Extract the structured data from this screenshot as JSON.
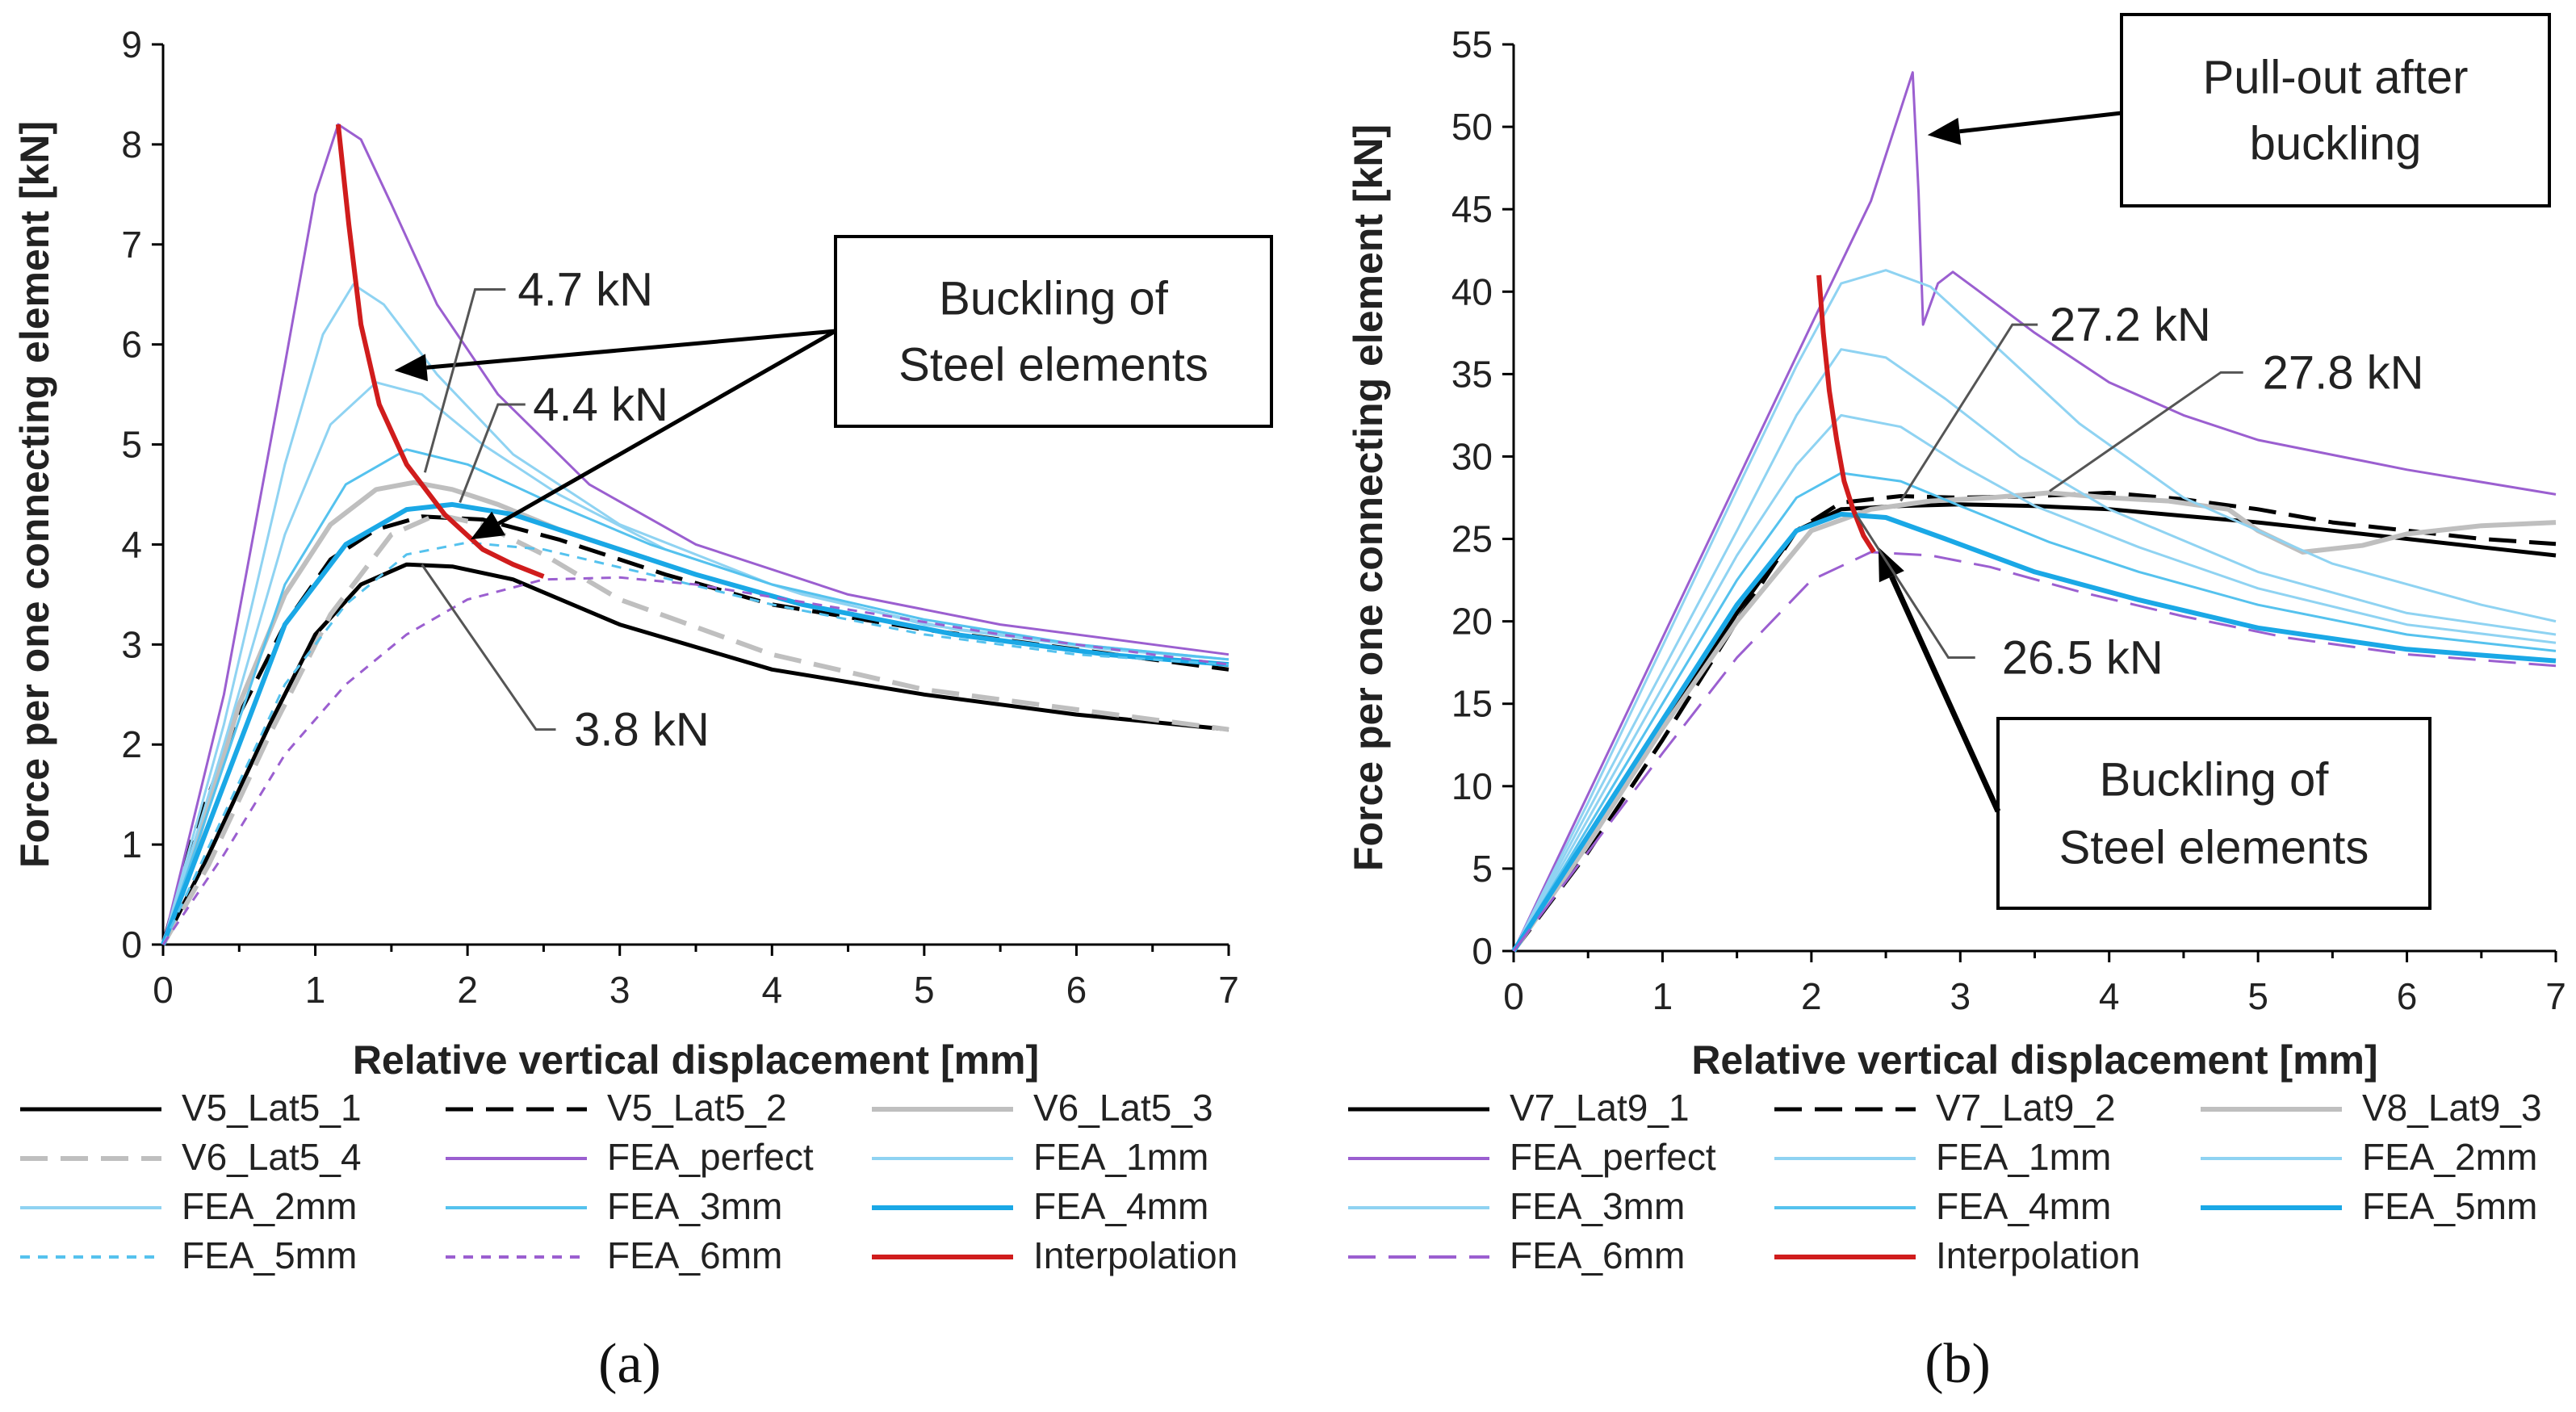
{
  "colors": {
    "black": "#000000",
    "gray": "#bfbfbf",
    "purple": "#9b5fd0",
    "light_blue": "#8fd3f2",
    "mid_blue": "#55c2ee",
    "strong_blue": "#1aa8e6",
    "red": "#d01c1c"
  },
  "chart_data": [
    {
      "type": "line",
      "panel_label": "(a)",
      "xlabel": "Relative vertical displacement [mm]",
      "ylabel": "Force per one connecting element [kN]",
      "xlim": [
        0,
        7
      ],
      "ylim": [
        0,
        9
      ],
      "xticks": [
        "0",
        "1",
        "2",
        "3",
        "4",
        "5",
        "6",
        "7"
      ],
      "yticks": [
        "0",
        "1",
        "2",
        "3",
        "4",
        "5",
        "6",
        "7",
        "8",
        "9"
      ],
      "series": [
        {
          "name": "V5_Lat5_1",
          "color": "#000000",
          "dash": "solid",
          "width": 5,
          "x": [
            0,
            0.3,
            0.7,
            1.0,
            1.3,
            1.6,
            1.9,
            2.3,
            3,
            4,
            5,
            6,
            7
          ],
          "y": [
            0,
            0.9,
            2.2,
            3.1,
            3.6,
            3.8,
            3.78,
            3.65,
            3.2,
            2.75,
            2.5,
            2.3,
            2.15
          ]
        },
        {
          "name": "V5_Lat5_2",
          "color": "#000000",
          "dash": "long",
          "width": 5,
          "x": [
            0,
            0.2,
            0.5,
            0.8,
            1.1,
            1.4,
            1.7,
            2.1,
            2.6,
            3.3,
            4,
            5,
            6,
            7
          ],
          "y": [
            0,
            1.1,
            2.3,
            3.2,
            3.85,
            4.15,
            4.28,
            4.25,
            4.05,
            3.7,
            3.4,
            3.15,
            2.95,
            2.75
          ]
        },
        {
          "name": "V6_Lat5_3",
          "color": "#bfbfbf",
          "dash": "solid",
          "width": 6,
          "x": [
            0,
            0.2,
            0.5,
            0.8,
            1.1,
            1.4,
            1.65,
            1.9,
            2.2,
            2.6,
            3.2
          ],
          "y": [
            0,
            0.9,
            2.4,
            3.5,
            4.2,
            4.55,
            4.62,
            4.55,
            4.4,
            4.15,
            3.85
          ]
        },
        {
          "name": "V6_Lat5_4",
          "color": "#bfbfbf",
          "dash": "long",
          "width": 6,
          "x": [
            0,
            0.3,
            0.7,
            1.1,
            1.5,
            1.8,
            2.1,
            2.5,
            3,
            4,
            5,
            6,
            7
          ],
          "y": [
            0,
            0.8,
            2.1,
            3.3,
            4.1,
            4.3,
            4.2,
            3.9,
            3.45,
            2.9,
            2.55,
            2.35,
            2.15
          ]
        },
        {
          "name": "FEA_perfect",
          "color": "#9b5fd0",
          "dash": "solid",
          "width": 3,
          "x": [
            0,
            0.4,
            0.8,
            1.0,
            1.15,
            1.3,
            1.5,
            1.8,
            2.2,
            2.8,
            3.5,
            4.5,
            5.5,
            6.5,
            7
          ],
          "y": [
            0,
            2.5,
            5.8,
            7.5,
            8.2,
            8.05,
            7.4,
            6.4,
            5.5,
            4.6,
            4.0,
            3.5,
            3.2,
            3.0,
            2.9
          ]
        },
        {
          "name": "FEA_1mm",
          "color": "#8fd3f2",
          "dash": "solid",
          "width": 3,
          "x": [
            0,
            0.4,
            0.8,
            1.05,
            1.25,
            1.45,
            1.8,
            2.3,
            3,
            4,
            5,
            6,
            7
          ],
          "y": [
            0,
            2.2,
            4.8,
            6.1,
            6.6,
            6.4,
            5.7,
            4.9,
            4.2,
            3.6,
            3.2,
            3.0,
            2.85
          ]
        },
        {
          "name": "FEA_2mm",
          "color": "#8fd3f2",
          "dash": "solid",
          "width": 3,
          "x": [
            0,
            0.4,
            0.8,
            1.1,
            1.4,
            1.7,
            2.1,
            2.6,
            3.3,
            4.2,
            5.2,
            6.2,
            7
          ],
          "y": [
            0,
            2.0,
            4.1,
            5.2,
            5.62,
            5.5,
            5.0,
            4.5,
            3.95,
            3.5,
            3.15,
            2.95,
            2.85
          ]
        },
        {
          "name": "FEA_3mm",
          "color": "#55c2ee",
          "dash": "solid",
          "width": 3,
          "x": [
            0,
            0.4,
            0.8,
            1.2,
            1.6,
            2.0,
            2.5,
            3.2,
            4.0,
            5.0,
            6.0,
            7
          ],
          "y": [
            0,
            1.8,
            3.6,
            4.6,
            4.95,
            4.8,
            4.45,
            4.0,
            3.6,
            3.25,
            3.0,
            2.85
          ]
        },
        {
          "name": "FEA_4mm",
          "color": "#1aa8e6",
          "dash": "solid",
          "width": 6,
          "x": [
            0,
            0.4,
            0.8,
            1.2,
            1.6,
            1.9,
            2.3,
            2.8,
            3.5,
            4.2,
            5.2,
            6.2,
            7
          ],
          "y": [
            0,
            1.6,
            3.2,
            4.0,
            4.35,
            4.4,
            4.3,
            4.05,
            3.7,
            3.4,
            3.1,
            2.9,
            2.8
          ]
        },
        {
          "name": "FEA_5mm",
          "color": "#55c2ee",
          "dash": "short",
          "width": 3,
          "x": [
            0,
            0.4,
            0.8,
            1.2,
            1.6,
            2.0,
            2.5,
            3.2,
            4.0,
            5.0,
            6.0,
            7
          ],
          "y": [
            0,
            1.3,
            2.6,
            3.4,
            3.9,
            4.02,
            3.95,
            3.7,
            3.4,
            3.1,
            2.9,
            2.8
          ]
        },
        {
          "name": "FEA_6mm",
          "color": "#9b5fd0",
          "dash": "short",
          "width": 3,
          "x": [
            0,
            0.4,
            0.8,
            1.2,
            1.6,
            2.0,
            2.5,
            3.0,
            3.5,
            4.5,
            5.5,
            6.5,
            7
          ],
          "y": [
            0,
            0.9,
            1.9,
            2.6,
            3.1,
            3.45,
            3.65,
            3.67,
            3.6,
            3.35,
            3.1,
            2.9,
            2.8
          ]
        },
        {
          "name": "Interpolation",
          "color": "#d01c1c",
          "dash": "solid",
          "width": 6,
          "x": [
            1.15,
            1.22,
            1.3,
            1.42,
            1.6,
            1.85,
            2.1,
            2.3,
            2.5
          ],
          "y": [
            8.2,
            7.2,
            6.2,
            5.4,
            4.8,
            4.3,
            3.95,
            3.8,
            3.68
          ]
        }
      ],
      "legend": [
        "V5_Lat5_1",
        "V5_Lat5_2",
        "V6_Lat5_3",
        "V6_Lat5_4",
        "FEA_perfect",
        "FEA_1mm",
        "FEA_2mm",
        "FEA_3mm",
        "FEA_4mm",
        "FEA_5mm",
        "FEA_6mm",
        "Interpolation"
      ],
      "annotations": [
        "4.7 kN",
        "4.4 kN",
        "3.8 kN"
      ],
      "callout_box": [
        "Buckling of",
        "Steel elements"
      ]
    },
    {
      "type": "line",
      "panel_label": "(b)",
      "xlabel": "Relative vertical displacement [mm]",
      "ylabel": "Force per one connecting element [kN]",
      "xlim": [
        0,
        7
      ],
      "ylim": [
        0,
        55
      ],
      "xticks": [
        "0",
        "1",
        "2",
        "3",
        "4",
        "5",
        "6",
        "7"
      ],
      "yticks": [
        "0",
        "5",
        "10",
        "15",
        "20",
        "25",
        "30",
        "35",
        "40",
        "45",
        "50",
        "55"
      ],
      "series": [
        {
          "name": "V7_Lat9_1",
          "color": "#000000",
          "dash": "solid",
          "width": 5,
          "x": [
            0,
            0.5,
            1.0,
            1.5,
            1.9,
            2.2,
            2.6,
            3.0,
            3.5,
            4.0,
            4.5,
            5.0,
            5.5,
            6.0,
            6.5,
            7
          ],
          "y": [
            0,
            6.5,
            13.5,
            20.5,
            25.5,
            26.8,
            27.0,
            27.1,
            27.0,
            26.8,
            26.4,
            26.0,
            25.5,
            25.0,
            24.5,
            24.0
          ]
        },
        {
          "name": "V7_Lat9_2",
          "color": "#000000",
          "dash": "long",
          "width": 5,
          "x": [
            0,
            0.5,
            1.0,
            1.5,
            1.9,
            2.2,
            2.6,
            3.0,
            3.5,
            4.0,
            4.5,
            5.0,
            5.5,
            6.0,
            6.5,
            7
          ],
          "y": [
            0,
            6.0,
            12.8,
            20.0,
            25.5,
            27.2,
            27.6,
            27.5,
            27.6,
            27.8,
            27.4,
            26.8,
            26.0,
            25.5,
            25.0,
            24.7
          ]
        },
        {
          "name": "V8_Lat9_3",
          "color": "#bfbfbf",
          "dash": "solid",
          "width": 6,
          "x": [
            0,
            0.5,
            1.0,
            1.5,
            2.0,
            2.4,
            2.8,
            3.2,
            3.6,
            4.0,
            4.4,
            4.8,
            5.0,
            5.3,
            5.7,
            6.0,
            6.5,
            7
          ],
          "y": [
            0,
            6.5,
            13.5,
            20.0,
            25.5,
            26.8,
            27.3,
            27.5,
            27.8,
            27.5,
            27.3,
            26.8,
            25.5,
            24.2,
            24.6,
            25.3,
            25.8,
            26.0
          ]
        },
        {
          "name": "FEA_perfect",
          "color": "#9b5fd0",
          "dash": "solid",
          "width": 3,
          "x": [
            0,
            0.5,
            1.0,
            1.5,
            2.0,
            2.4,
            2.68,
            2.72,
            2.75,
            2.85,
            2.95,
            3.1,
            3.5,
            4.0,
            4.5,
            5.0,
            6.0,
            7
          ],
          "y": [
            0,
            9.5,
            19.0,
            28.5,
            38.0,
            45.5,
            53.3,
            46.0,
            38.0,
            40.5,
            41.2,
            40.2,
            37.5,
            34.5,
            32.5,
            31.0,
            29.2,
            27.7
          ]
        },
        {
          "name": "FEA_1mm",
          "color": "#8fd3f2",
          "dash": "solid",
          "width": 3,
          "x": [
            0,
            0.5,
            1.0,
            1.5,
            1.9,
            2.2,
            2.5,
            2.8,
            3.2,
            3.8,
            4.5,
            5.5,
            6.5,
            7
          ],
          "y": [
            0,
            9.0,
            18.5,
            28.0,
            35.5,
            40.5,
            41.3,
            40.3,
            37.0,
            32.0,
            27.5,
            23.5,
            21.0,
            20.0
          ]
        },
        {
          "name": "FEA_2mm",
          "color": "#8fd3f2",
          "dash": "solid",
          "width": 3,
          "x": [
            0,
            0.5,
            1.0,
            1.5,
            1.9,
            2.2,
            2.5,
            2.9,
            3.4,
            4.0,
            5.0,
            6.0,
            7
          ],
          "y": [
            0,
            8.5,
            17.0,
            25.5,
            32.5,
            36.5,
            36.0,
            33.5,
            30.0,
            26.8,
            23.0,
            20.5,
            19.2
          ]
        },
        {
          "name": "FEA_3mm",
          "color": "#8fd3f2",
          "dash": "solid",
          "width": 3,
          "x": [
            0,
            0.5,
            1.0,
            1.5,
            1.9,
            2.2,
            2.6,
            3.0,
            3.5,
            4.2,
            5.0,
            6.0,
            7
          ],
          "y": [
            0,
            8.0,
            16.0,
            24.0,
            29.5,
            32.5,
            31.8,
            29.5,
            27.0,
            24.5,
            22.0,
            19.8,
            18.7
          ]
        },
        {
          "name": "FEA_4mm",
          "color": "#55c2ee",
          "dash": "solid",
          "width": 3,
          "x": [
            0,
            0.5,
            1.0,
            1.5,
            1.9,
            2.2,
            2.6,
            3.0,
            3.6,
            4.2,
            5.0,
            6.0,
            7
          ],
          "y": [
            0,
            7.5,
            15.0,
            22.5,
            27.5,
            29.0,
            28.5,
            27.0,
            24.8,
            23.0,
            21.0,
            19.2,
            18.2
          ]
        },
        {
          "name": "FEA_5mm",
          "color": "#1aa8e6",
          "dash": "solid",
          "width": 6,
          "x": [
            0,
            0.5,
            1.0,
            1.5,
            1.9,
            2.2,
            2.5,
            2.9,
            3.5,
            4.2,
            5.0,
            6.0,
            7
          ],
          "y": [
            0,
            7.0,
            14.0,
            21.0,
            25.5,
            26.5,
            26.3,
            25.0,
            23.0,
            21.3,
            19.6,
            18.3,
            17.6
          ]
        },
        {
          "name": "FEA_6mm",
          "color": "#9b5fd0",
          "dash": "long",
          "width": 3,
          "x": [
            0,
            0.5,
            1.0,
            1.5,
            2.0,
            2.4,
            2.8,
            3.2,
            3.8,
            4.5,
            5.2,
            6.0,
            7
          ],
          "y": [
            0,
            6.0,
            12.0,
            17.8,
            22.5,
            24.2,
            24.0,
            23.3,
            21.8,
            20.3,
            19.0,
            18.0,
            17.3
          ]
        },
        {
          "name": "Interpolation",
          "color": "#d01c1c",
          "dash": "solid",
          "width": 6,
          "x": [
            2.05,
            2.08,
            2.12,
            2.17,
            2.22,
            2.28,
            2.35,
            2.42
          ],
          "y": [
            41.0,
            37.5,
            34.0,
            31.0,
            28.5,
            26.8,
            25.2,
            24.2
          ]
        }
      ],
      "legend": [
        "V7_Lat9_1",
        "V7_Lat9_2",
        "V8_Lat9_3",
        "FEA_perfect",
        "FEA_1mm",
        "FEA_2mm",
        "FEA_3mm",
        "FEA_4mm",
        "FEA_5mm",
        "FEA_6mm",
        "Interpolation"
      ],
      "annotations": [
        "27.2 kN",
        "27.8 kN",
        "26.5 kN"
      ],
      "callout_box_top": [
        "Pull-out after",
        "buckling"
      ],
      "callout_box": [
        "Buckling of",
        "Steel elements"
      ]
    }
  ]
}
